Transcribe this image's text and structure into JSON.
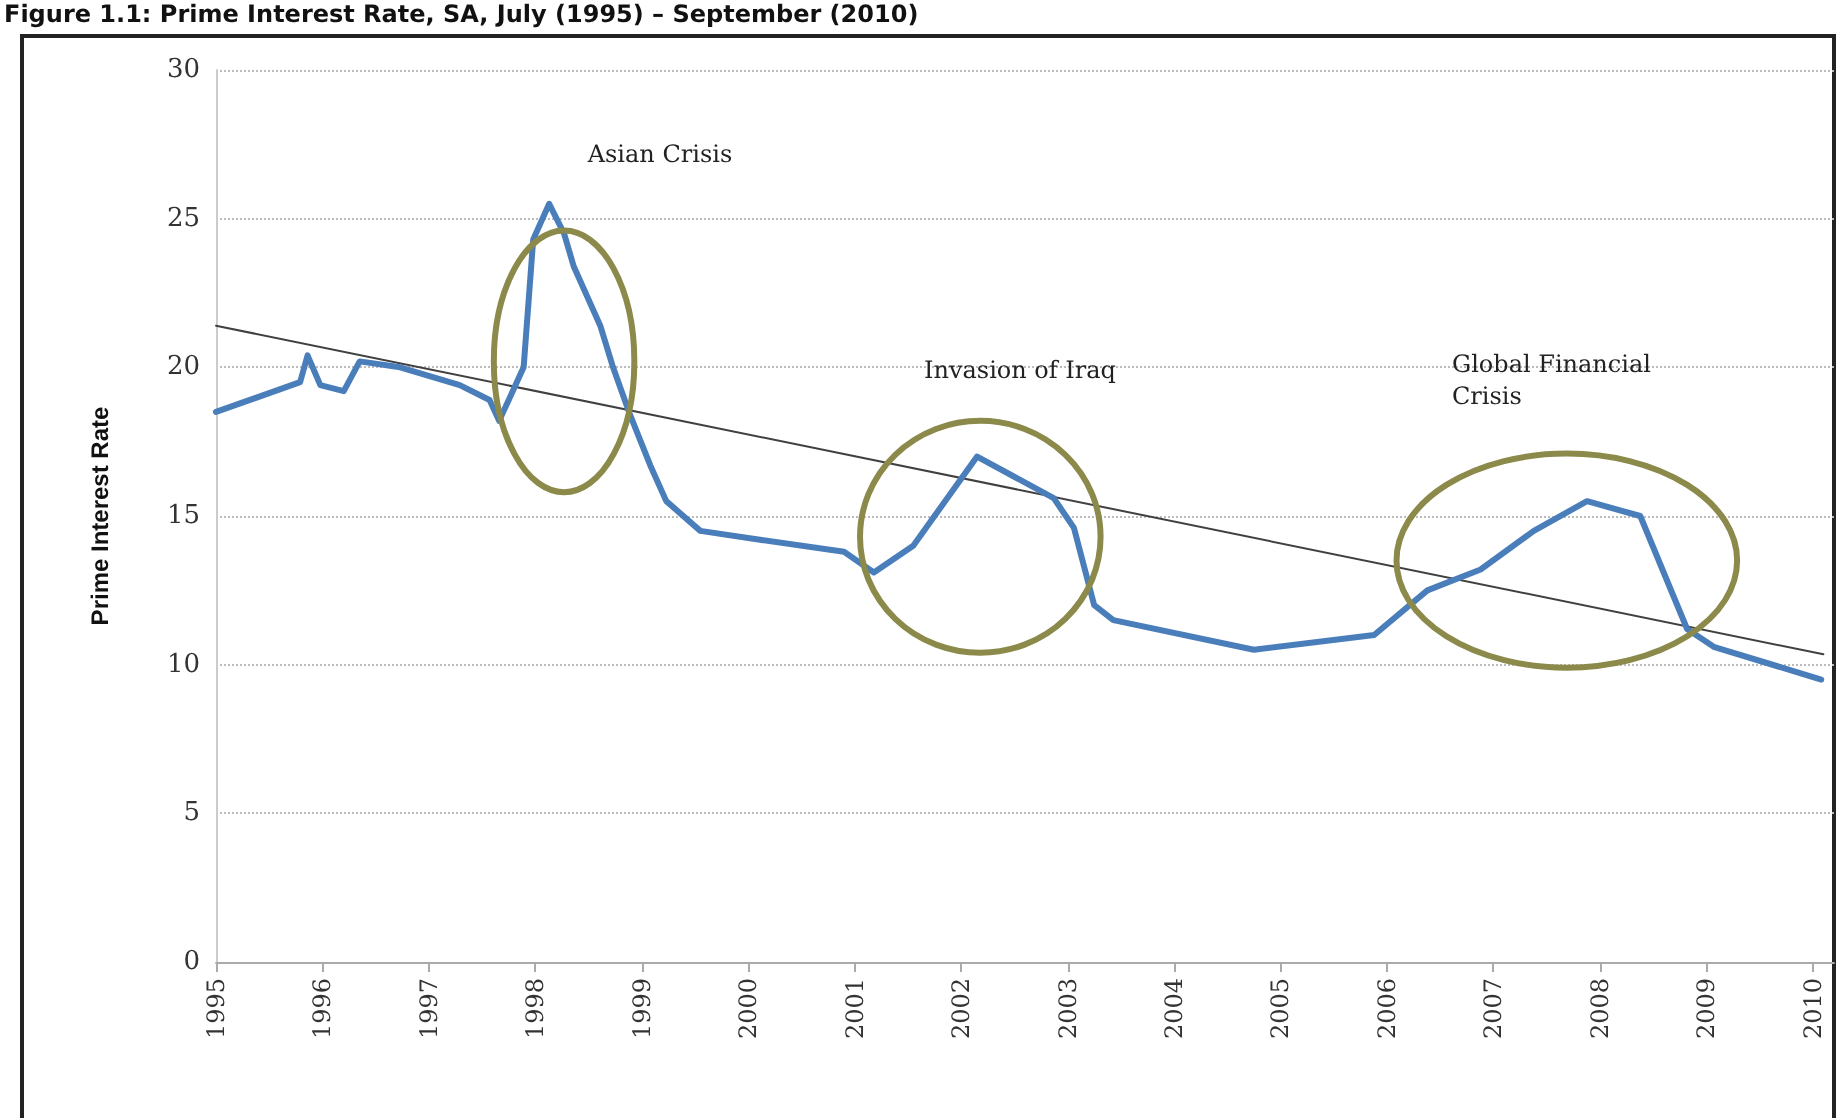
{
  "chart_data": {
    "type": "line",
    "title": "Figure 1.1: Prime Interest Rate, SA, July (1995) – September (2010)",
    "ylabel": "Prime Interest Rate",
    "xlim": [
      1995,
      2010.2
    ],
    "xticks": [
      1995,
      1996,
      1997,
      1998,
      1999,
      2000,
      2001,
      2002,
      2003,
      2004,
      2005,
      2006,
      2007,
      2008,
      2009,
      2010
    ],
    "ylim": [
      0,
      30
    ],
    "yticks": [
      0,
      5,
      10,
      15,
      20,
      25,
      30
    ],
    "grid": "y",
    "marker": "none",
    "line_style": "solid",
    "series": [
      {
        "color": "#4a7ebb",
        "x": [
          1995.0,
          1995.79,
          1995.86,
          1995.98,
          1996.2,
          1996.35,
          1996.73,
          1997.29,
          1997.57,
          1997.66,
          1997.89,
          1997.98,
          1998.13,
          1998.27,
          1998.36,
          1998.61,
          1998.73,
          1998.89,
          1999.08,
          1999.23,
          1999.55,
          2000.11,
          2000.9,
          2001.18,
          2001.55,
          2002.15,
          2002.87,
          2003.06,
          2003.25,
          2003.43,
          2004.75,
          2005.88,
          2006.38,
          2006.88,
          2007.38,
          2007.88,
          2008.38,
          2008.82,
          2009.07,
          2010.08
        ],
        "values": [
          18.5,
          19.5,
          20.4,
          19.4,
          19.2,
          20.2,
          20.0,
          19.4,
          18.9,
          18.2,
          20.0,
          24.3,
          25.5,
          24.5,
          23.4,
          21.4,
          20.0,
          18.4,
          16.7,
          15.5,
          14.5,
          14.2,
          13.8,
          13.1,
          14.0,
          17.0,
          15.6,
          14.6,
          12.0,
          11.5,
          10.5,
          11.0,
          12.5,
          13.2,
          14.5,
          15.5,
          15.0,
          11.2,
          10.6,
          9.5
        ]
      },
      {
        "type": "line",
        "color": "#404040",
        "x": [
          1995.0,
          2010.1
        ],
        "values": [
          21.4,
          10.35
        ]
      }
    ],
    "annotations": [
      "Asian Crisis",
      "Invasion of Iraq",
      "Global Financial\nCrisis"
    ]
  }
}
